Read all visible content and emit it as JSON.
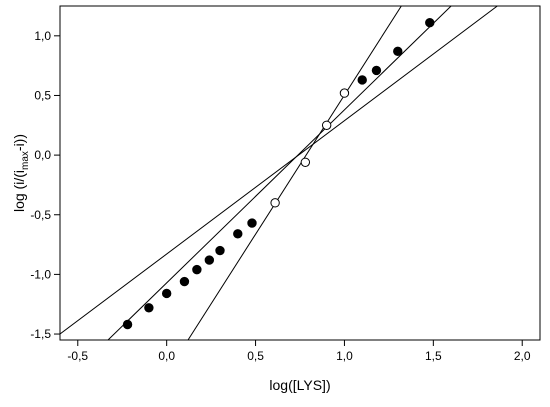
{
  "chart_data": {
    "type": "scatter",
    "title": "",
    "xlabel": "log([LYS])",
    "ylabel": {
      "prefix": "log (i/(i",
      "subscript": "max",
      "suffix": "-i))"
    },
    "xlim": [
      -0.6,
      2.1
    ],
    "ylim": [
      -1.55,
      1.25
    ],
    "x_ticks": [
      {
        "value": -0.5,
        "label": "-0,5"
      },
      {
        "value": 0.0,
        "label": "0,0"
      },
      {
        "value": 0.5,
        "label": "0,5"
      },
      {
        "value": 1.0,
        "label": "1,0"
      },
      {
        "value": 1.5,
        "label": "1,5"
      },
      {
        "value": 2.0,
        "label": "2,0"
      }
    ],
    "y_ticks": [
      {
        "value": -1.5,
        "label": "-1,5"
      },
      {
        "value": -1.0,
        "label": "-1,0"
      },
      {
        "value": -0.5,
        "label": "-0,5"
      },
      {
        "value": 0.0,
        "label": "0,0"
      },
      {
        "value": 0.5,
        "label": "0,5"
      },
      {
        "value": 1.0,
        "label": "1,0"
      }
    ],
    "grid": false,
    "series": [
      {
        "marker": "filled-circle",
        "color": "#000000",
        "points": [
          {
            "x": -0.22,
            "y": -1.42
          },
          {
            "x": -0.1,
            "y": -1.28
          },
          {
            "x": 0.0,
            "y": -1.16
          },
          {
            "x": 0.1,
            "y": -1.06
          },
          {
            "x": 0.17,
            "y": -0.96
          },
          {
            "x": 0.24,
            "y": -0.88
          },
          {
            "x": 0.3,
            "y": -0.8
          },
          {
            "x": 0.4,
            "y": -0.66
          },
          {
            "x": 0.48,
            "y": -0.57
          },
          {
            "x": 1.1,
            "y": 0.63
          },
          {
            "x": 1.18,
            "y": 0.71
          },
          {
            "x": 1.3,
            "y": 0.87
          },
          {
            "x": 1.48,
            "y": 1.11
          }
        ]
      },
      {
        "marker": "open-circle",
        "color": "#000000",
        "points": [
          {
            "x": 0.61,
            "y": -0.4
          },
          {
            "x": 0.78,
            "y": -0.06
          },
          {
            "x": 0.9,
            "y": 0.25
          },
          {
            "x": 1.0,
            "y": 0.52
          }
        ]
      }
    ],
    "lines": [
      {
        "from": {
          "x": -0.33,
          "y": -1.55
        },
        "to": {
          "x": 1.6,
          "y": 1.25
        }
      },
      {
        "from": {
          "x": -0.6,
          "y": -1.5
        },
        "to": {
          "x": 1.86,
          "y": 1.25
        }
      },
      {
        "from": {
          "x": 0.12,
          "y": -1.55
        },
        "to": {
          "x": 1.32,
          "y": 1.25
        }
      }
    ]
  }
}
